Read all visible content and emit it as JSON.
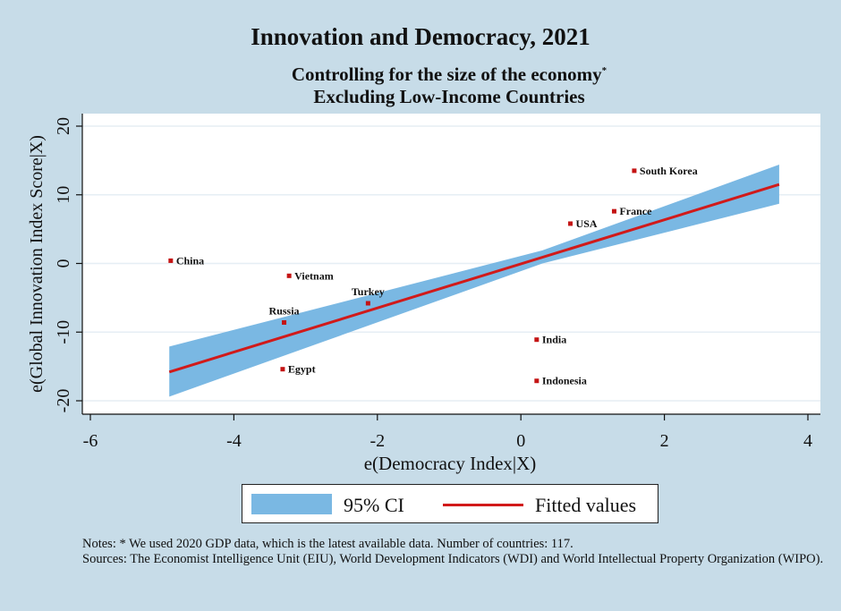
{
  "chart_data": {
    "type": "scatter",
    "title": "Innovation and Democracy, 2021",
    "subtitle_lines": [
      "Controlling for the size of the economy",
      "Excluding Low-Income Countries"
    ],
    "subtitle_marker": "*",
    "xlabel": "e(Democracy Index|X)",
    "ylabel": "e(Global Innovation Index Score|X)",
    "xlim": [
      -6,
      4
    ],
    "ylim": [
      -20,
      20
    ],
    "xticks": [
      -6,
      -4,
      -2,
      0,
      2,
      4
    ],
    "yticks": [
      -20,
      -10,
      0,
      10,
      20
    ],
    "grid": true,
    "legend_position": "bottom",
    "points": [
      {
        "label": "South Korea",
        "x": 1.58,
        "y": 13.5
      },
      {
        "label": "France",
        "x": 1.3,
        "y": 7.6
      },
      {
        "label": "USA",
        "x": 0.69,
        "y": 5.8
      },
      {
        "label": "China",
        "x": -4.88,
        "y": 0.4
      },
      {
        "label": "Vietnam",
        "x": -3.23,
        "y": -1.8
      },
      {
        "label": "Turkey",
        "x": -2.13,
        "y": -5.8
      },
      {
        "label": "Russia",
        "x": -3.3,
        "y": -8.6
      },
      {
        "label": "India",
        "x": 0.22,
        "y": -11.1
      },
      {
        "label": "Egypt",
        "x": -3.32,
        "y": -15.4
      },
      {
        "label": "Indonesia",
        "x": 0.22,
        "y": -17.1
      }
    ],
    "fitted_line": {
      "x": [
        -4.9,
        3.6
      ],
      "y": [
        -15.8,
        11.5
      ]
    },
    "confidence_band": {
      "x": [
        -4.9,
        0.3,
        3.6
      ],
      "lower": [
        -19.4,
        0.0,
        8.7
      ],
      "upper": [
        -12.1,
        1.9,
        14.4
      ]
    },
    "series": [
      {
        "name": "95% CI",
        "color": "#7ab8e3"
      },
      {
        "name": "Fitted values",
        "color": "#d11a1a"
      }
    ],
    "point_color": "#c41414"
  },
  "legend": {
    "ci_label": "95% CI",
    "fit_label": "Fitted values"
  },
  "notes": {
    "line1": "Notes: * We used 2020 GDP data, which is the latest available data. Number of countries: 117.",
    "line2": "Sources: The Economist Intelligence Unit (EIU), World Development Indicators (WDI) and World Intellectual Property Organization (WIPO)."
  }
}
